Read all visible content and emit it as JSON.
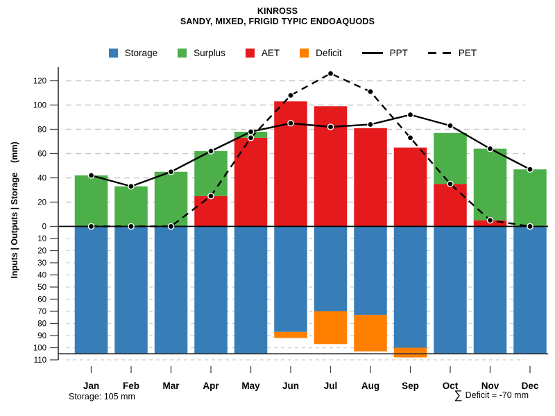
{
  "title": "KINROSS",
  "subtitle": "SANDY, MIXED, FRIGID TYPIC ENDOAQUODS",
  "y_axis_label": "Inputs | Outputs | Storage    (mm)",
  "footer": {
    "storage_note": "Storage: 105 mm",
    "sigma": "∑",
    "deficit_note": "Deficit = -70 mm"
  },
  "legend": {
    "items": [
      {
        "label": "Storage",
        "swatch": "square",
        "color": "#377eb8"
      },
      {
        "label": "Surplus",
        "swatch": "square",
        "color": "#4daf4a"
      },
      {
        "label": "AET",
        "swatch": "square",
        "color": "#e41a1c"
      },
      {
        "label": "Deficit",
        "swatch": "square",
        "color": "#ff7f00"
      },
      {
        "label": "PPT",
        "swatch": "line-solid",
        "color": "#000000"
      },
      {
        "label": "PET",
        "swatch": "line-dashed",
        "color": "#000000"
      }
    ]
  },
  "chart_data": {
    "type": "bar",
    "subtype": "water-balance combo: stacked bars up (AET+Surplus), stacked bars down on inverted storage axis (Storage+Deficit), overlaid lines (PPT solid, PET dashed)",
    "categories": [
      "Jan",
      "Feb",
      "Mar",
      "Apr",
      "May",
      "Jun",
      "Jul",
      "Aug",
      "Sep",
      "Oct",
      "Nov",
      "Dec"
    ],
    "series": [
      {
        "name": "Storage",
        "kind": "bar",
        "direction": "down",
        "color": "#377eb8",
        "values": [
          105,
          105,
          105,
          105,
          105,
          87,
          70,
          73,
          100,
          105,
          105,
          105
        ]
      },
      {
        "name": "Deficit",
        "kind": "bar",
        "direction": "down",
        "stacked_on": "Storage",
        "color": "#ff7f00",
        "values": [
          0,
          0,
          0,
          0,
          0,
          5,
          27,
          30,
          8,
          0,
          0,
          0
        ]
      },
      {
        "name": "AET",
        "kind": "bar",
        "direction": "up",
        "color": "#e41a1c",
        "values": [
          0,
          0,
          0,
          25,
          73,
          103,
          99,
          81,
          65,
          35,
          5,
          0
        ]
      },
      {
        "name": "Surplus",
        "kind": "bar",
        "direction": "up",
        "stacked_on": "AET",
        "color": "#4daf4a",
        "values": [
          42,
          33,
          45,
          37,
          5,
          0,
          0,
          0,
          0,
          42,
          59,
          47
        ]
      },
      {
        "name": "PPT",
        "kind": "line",
        "style": "solid",
        "color": "#000000",
        "values": [
          42,
          33,
          45,
          62,
          78,
          85,
          82,
          84,
          92,
          83,
          64,
          47
        ]
      },
      {
        "name": "PET",
        "kind": "line",
        "style": "dashed",
        "color": "#000000",
        "values": [
          0,
          0,
          0,
          25,
          73,
          108,
          126,
          111,
          73,
          35,
          5,
          0
        ]
      }
    ],
    "y_axis": {
      "label": "Inputs | Outputs | Storage (mm)",
      "upper_ticks": [
        0,
        20,
        40,
        60,
        80,
        100,
        120
      ],
      "lower_ticks": [
        10,
        20,
        30,
        40,
        50,
        60,
        70,
        80,
        90,
        100,
        110
      ],
      "upper_range_mm": [
        0,
        130
      ],
      "lower_range_mm": [
        0,
        110
      ],
      "lower_axis_inverted": true,
      "units": "mm"
    },
    "grid": {
      "horizontal_dashed": true,
      "color": "#c8c8c8"
    },
    "zero_line": true,
    "storage_capacity_mm": 105,
    "deficit_total_mm": -70
  }
}
